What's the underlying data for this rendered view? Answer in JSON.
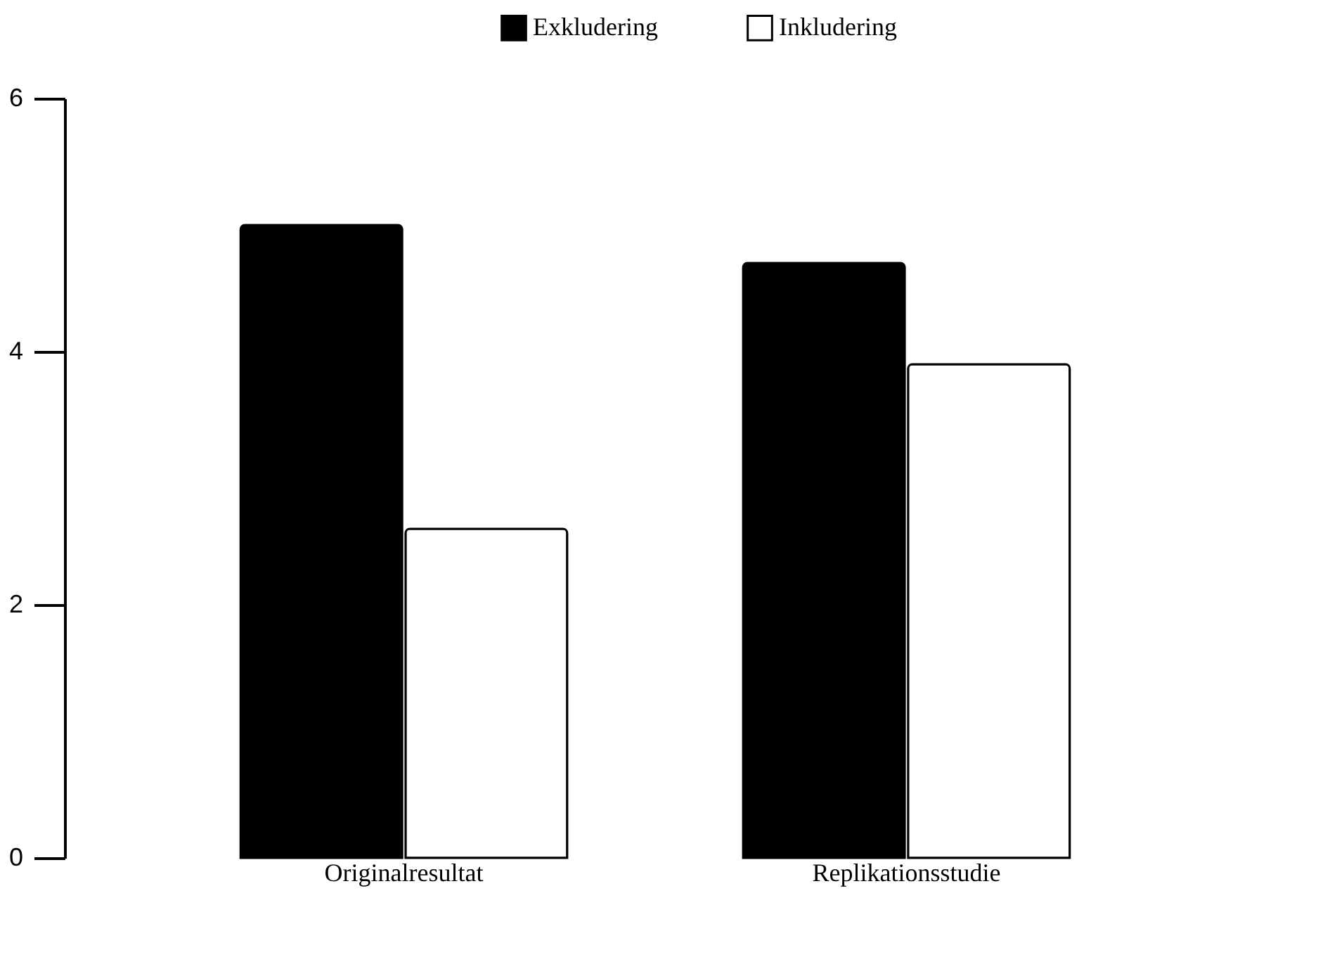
{
  "chart_data": {
    "type": "bar",
    "categories": [
      "Originalresultat",
      "Replikationsstudie"
    ],
    "series": [
      {
        "name": "Exkludering",
        "color": "#000000",
        "values": [
          5.0,
          4.7
        ]
      },
      {
        "name": "Inkludering",
        "color": "#ffffff",
        "values": [
          2.6,
          3.9
        ]
      }
    ],
    "ylim": [
      0,
      6
    ],
    "yticks": [
      0,
      2,
      4,
      6
    ],
    "grid": false,
    "legend": "top"
  }
}
